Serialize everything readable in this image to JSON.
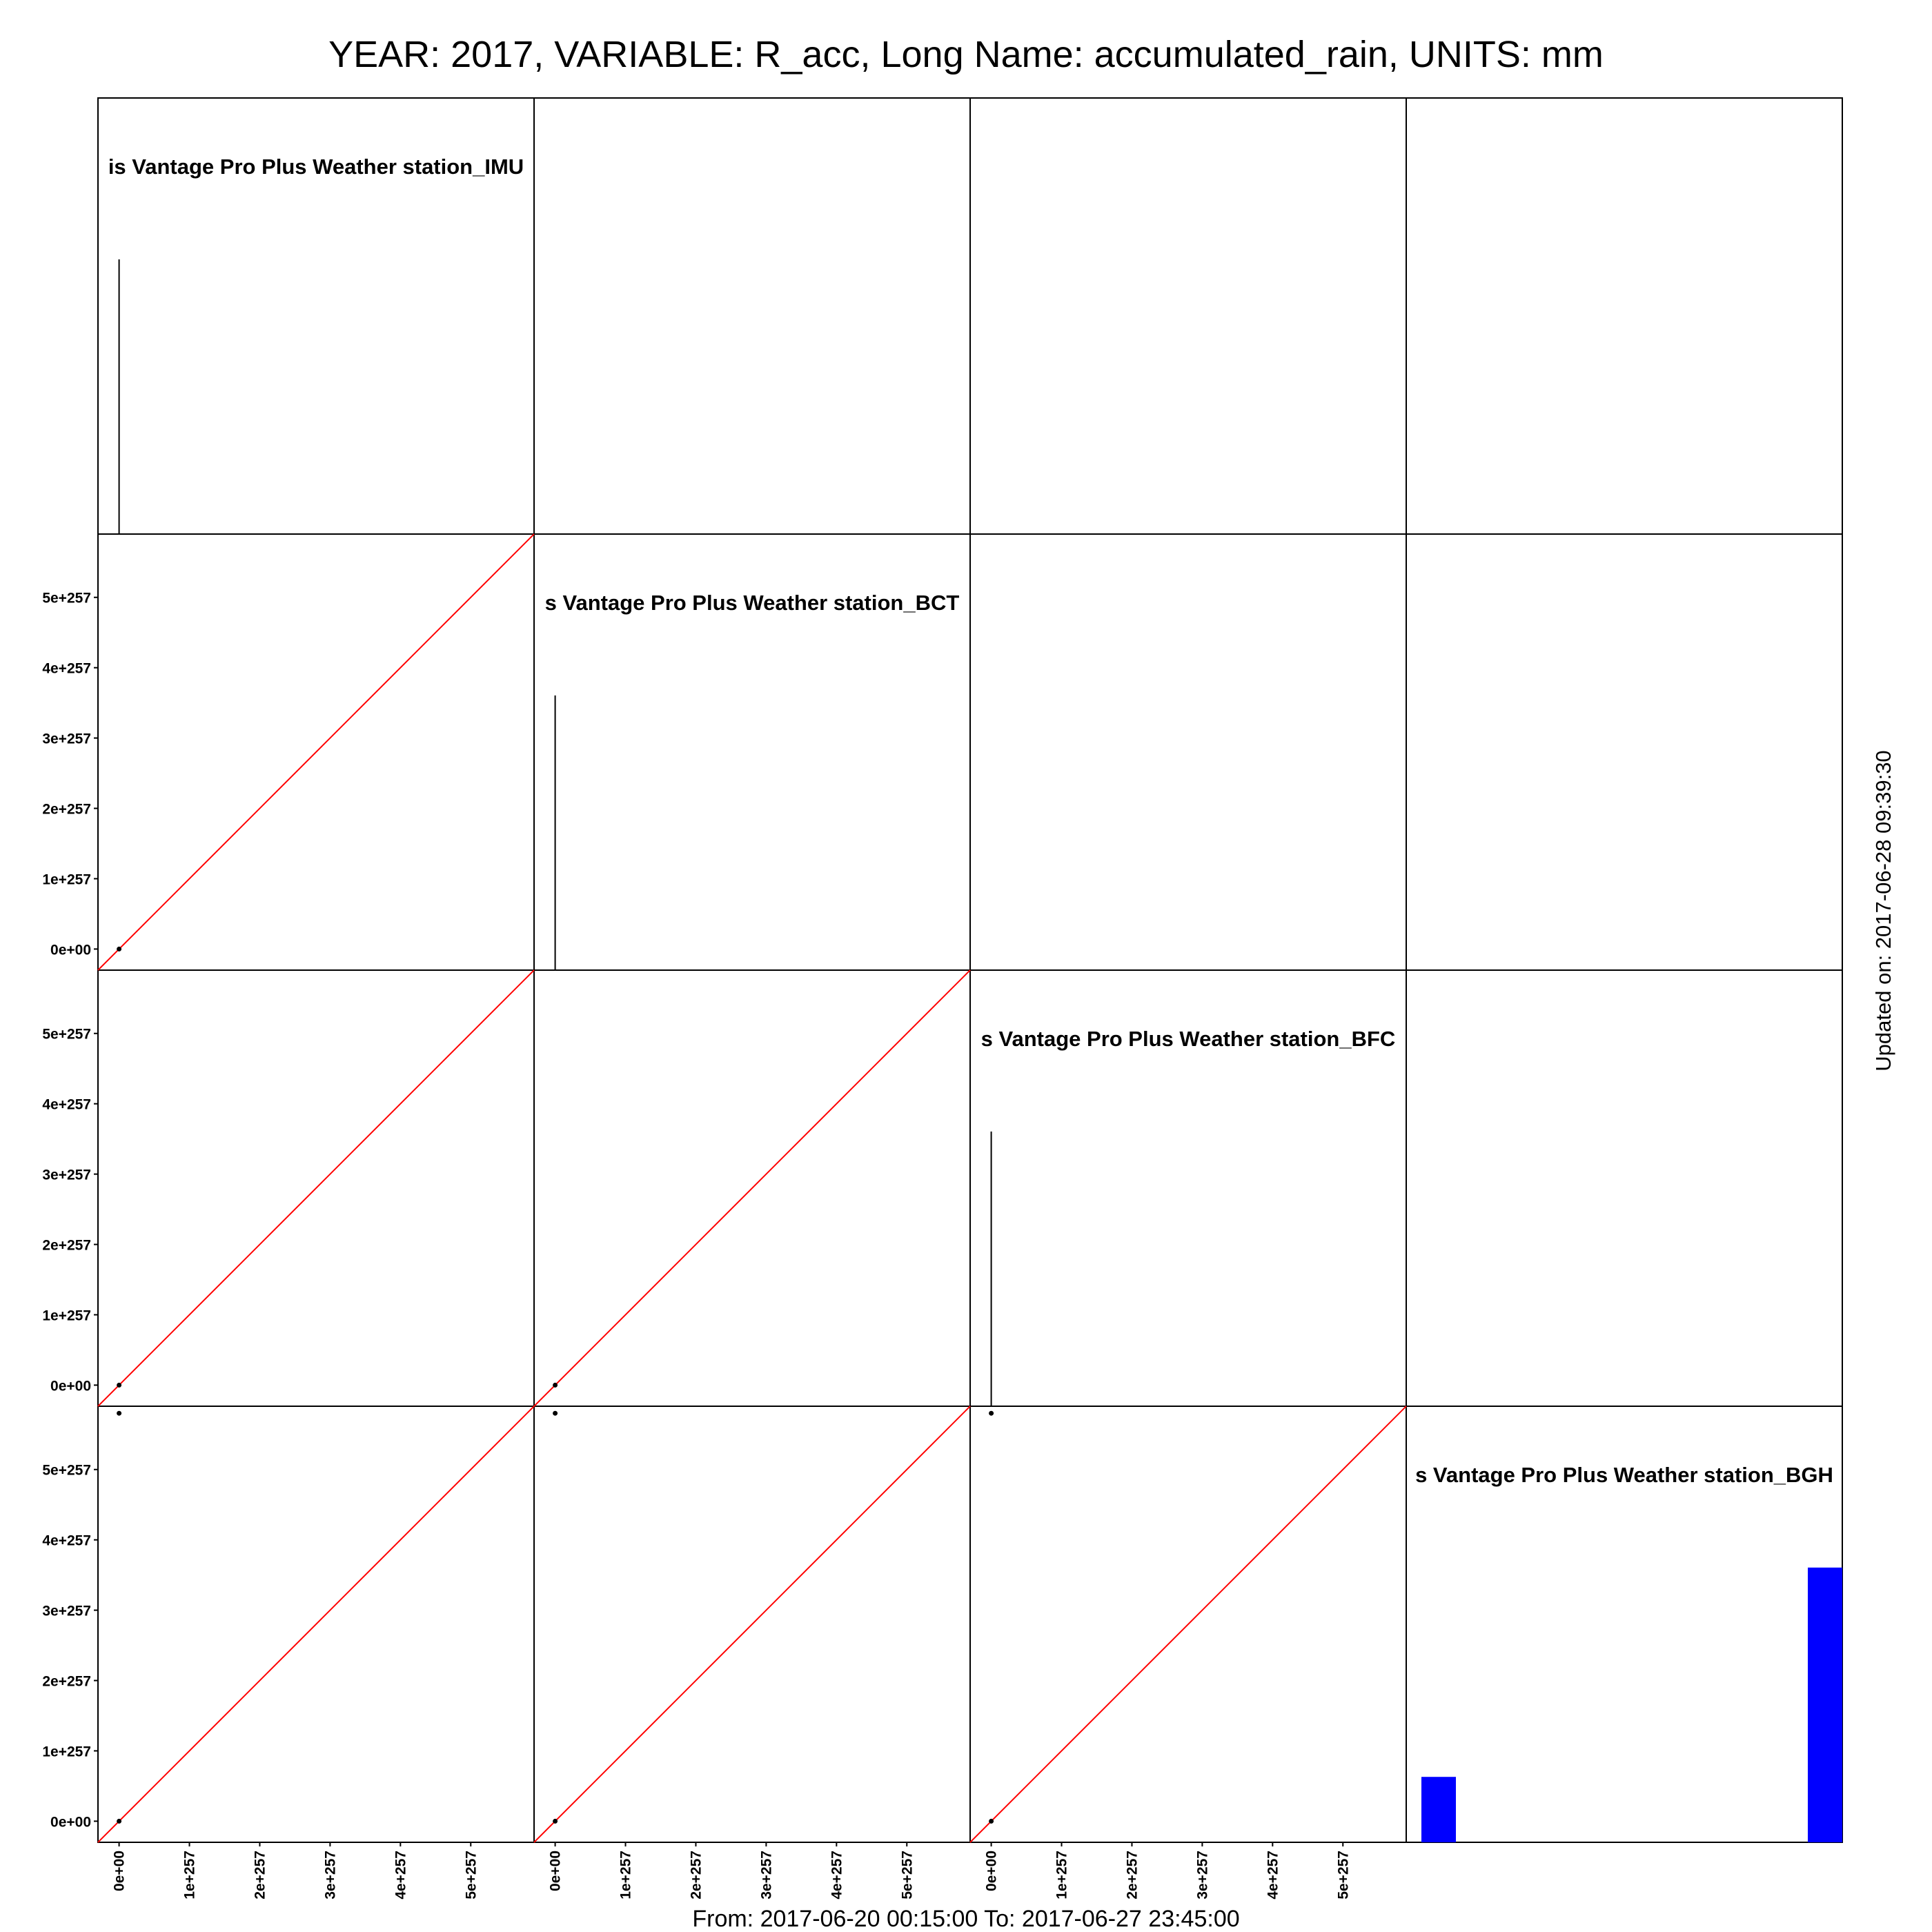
{
  "title": "YEAR: 2017, VARIABLE: R_acc, Long Name: accumulated_rain, UNITS: mm",
  "footer": "From: 2017-06-20 00:15:00 To: 2017-06-27 23:45:00",
  "updated": "Updated on: 2017-06-28 09:39:30",
  "colors": {
    "diagonal_line": "#ff0000",
    "histogram_bar": "#0000ff",
    "frame": "#000000",
    "points": "#000000"
  },
  "chart_data": {
    "type": "scatter",
    "layout": "scatterplot-matrix",
    "grid": false,
    "tick_labels": [
      "0e+00",
      "1e+257",
      "2e+257",
      "3e+257",
      "4e+257",
      "5e+257"
    ],
    "tick_values": [
      0,
      1e+257,
      2e+257,
      3e+257,
      4e+257,
      5e+257
    ],
    "axis_range": [
      -3e+256,
      5.9e+257
    ],
    "stations": [
      "is Vantage Pro Plus Weather station_IMU",
      "s Vantage Pro Plus Weather station_BCT",
      "s Vantage Pro Plus Weather station_BFC",
      "s Vantage Pro Plus Weather station_BGH"
    ],
    "diagonal_reference_line": "y = x",
    "scatter_points": [
      {
        "row": 1,
        "col": 0,
        "x": 0,
        "y": 0
      },
      {
        "row": 2,
        "col": 0,
        "x": 0,
        "y": 0
      },
      {
        "row": 2,
        "col": 1,
        "x": 0,
        "y": 0
      },
      {
        "row": 3,
        "col": 0,
        "x": 0,
        "y": 0
      },
      {
        "row": 3,
        "col": 0,
        "x": 0,
        "y": 5.8e+257
      },
      {
        "row": 3,
        "col": 1,
        "x": 0,
        "y": 0
      },
      {
        "row": 3,
        "col": 1,
        "x": 0,
        "y": 5.8e+257
      },
      {
        "row": 3,
        "col": 2,
        "x": 0,
        "y": 0
      },
      {
        "row": 3,
        "col": 2,
        "x": 0,
        "y": 5.8e+257
      }
    ],
    "diagonal_panels": [
      {
        "index": 0,
        "kind": "spike",
        "x": 0,
        "relative_height": 0.63
      },
      {
        "index": 1,
        "kind": "spike",
        "x": 0,
        "relative_height": 0.63
      },
      {
        "index": 2,
        "kind": "spike",
        "x": 0,
        "relative_height": 0.63
      },
      {
        "index": 3,
        "kind": "histogram",
        "bars": [
          {
            "bin": "first",
            "relative_height": 0.15
          },
          {
            "bin": "last",
            "relative_height": 0.63
          }
        ]
      }
    ]
  }
}
